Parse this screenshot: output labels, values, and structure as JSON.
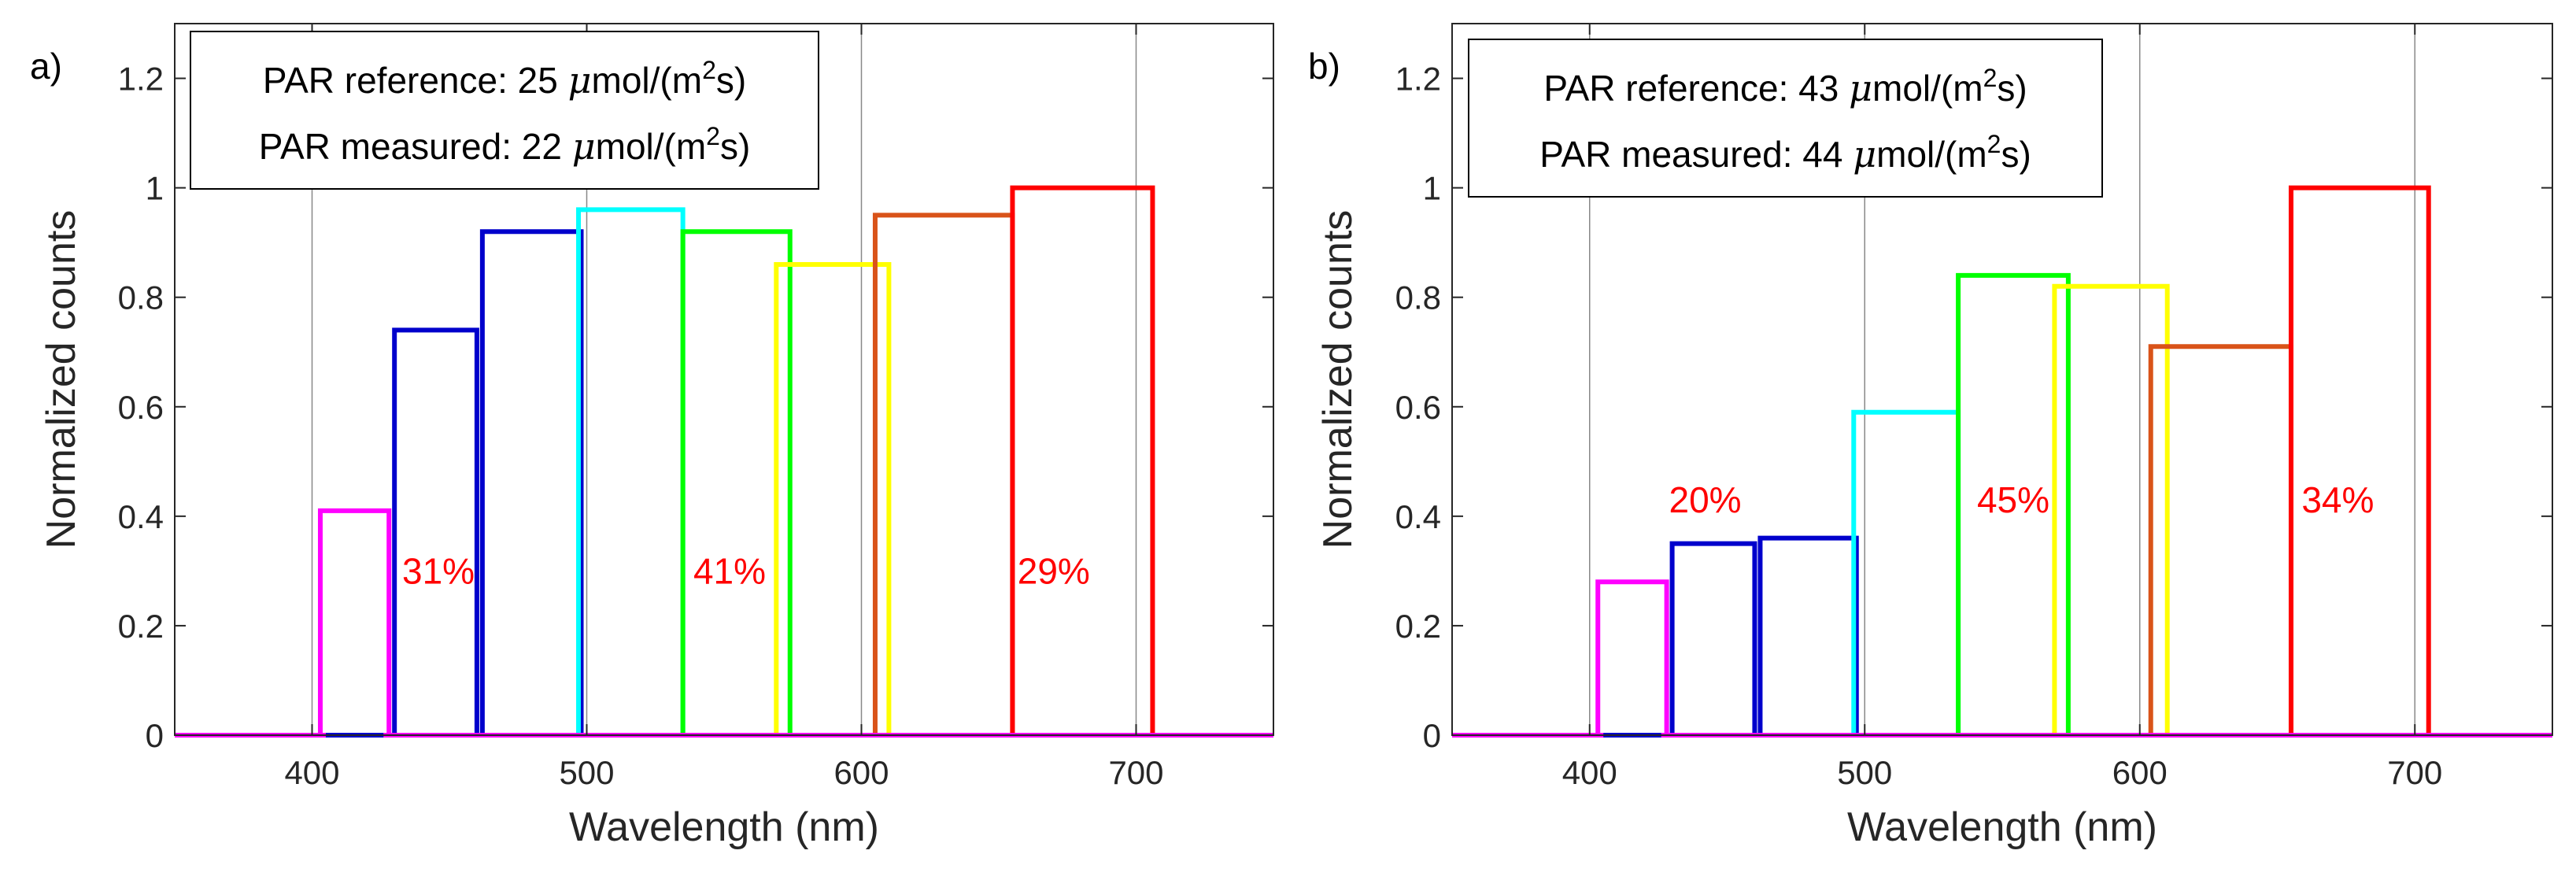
{
  "chart_data": [
    {
      "type": "bar",
      "panel_label": "a)",
      "xlabel": "Wavelength (nm)",
      "ylabel": "Normalized counts",
      "xlim": [
        350,
        750
      ],
      "ylim": [
        0,
        1.3
      ],
      "xticks": [
        400,
        500,
        600,
        700
      ],
      "yticks": [
        0,
        0.2,
        0.4,
        0.6,
        0.8,
        1,
        1.2
      ],
      "xtick_labels": [
        "400",
        "500",
        "600",
        "700"
      ],
      "ytick_labels": [
        "0",
        "0.2",
        "0.4",
        "0.6",
        "0.8",
        "1",
        "1.2"
      ],
      "grid": "vertical",
      "legend": {
        "location": "top-left",
        "ref_prefix": "PAR reference: 25 ",
        "meas_prefix": "PAR measured: 22 ",
        "unit_mu": "μ",
        "unit_text": "mol/(m",
        "unit_sup": "2",
        "unit_end": "s)"
      },
      "bands": [
        {
          "x0": 403,
          "x1": 428,
          "value": 0.41,
          "color": "#ff00ff"
        },
        {
          "x0": 430,
          "x1": 460,
          "value": 0.74,
          "color": "#0000cc"
        },
        {
          "x0": 462,
          "x1": 498,
          "value": 0.92,
          "color": "#0000cc"
        },
        {
          "x0": 497,
          "x1": 535,
          "value": 0.96,
          "color": "#00ffff"
        },
        {
          "x0": 535,
          "x1": 574,
          "value": 0.92,
          "color": "#00ff00"
        },
        {
          "x0": 569,
          "x1": 610,
          "value": 0.86,
          "color": "#ffff00"
        },
        {
          "x0": 605,
          "x1": 655,
          "value": 0.95,
          "color": "#d95319"
        },
        {
          "x0": 655,
          "x1": 706,
          "value": 1.0,
          "color": "#ff0000"
        }
      ],
      "annotations": [
        {
          "text": "31%",
          "x": 446,
          "y": 0.3
        },
        {
          "text": "41%",
          "x": 552,
          "y": 0.3
        },
        {
          "text": "29%",
          "x": 670,
          "y": 0.3
        }
      ]
    },
    {
      "type": "bar",
      "panel_label": "b)",
      "xlabel": "Wavelength (nm)",
      "ylabel": "Normalized counts",
      "xlim": [
        350,
        750
      ],
      "ylim": [
        0,
        1.3
      ],
      "xticks": [
        400,
        500,
        600,
        700
      ],
      "yticks": [
        0,
        0.2,
        0.4,
        0.6,
        0.8,
        1,
        1.2
      ],
      "xtick_labels": [
        "400",
        "500",
        "600",
        "700"
      ],
      "ytick_labels": [
        "0",
        "0.2",
        "0.4",
        "0.6",
        "0.8",
        "1",
        "1.2"
      ],
      "grid": "vertical",
      "legend": {
        "location": "top-left",
        "ref_prefix": "PAR reference: 43 ",
        "meas_prefix": "PAR measured: 44 ",
        "unit_mu": "μ",
        "unit_text": "mol/(m",
        "unit_sup": "2",
        "unit_end": "s)"
      },
      "bands": [
        {
          "x0": 403,
          "x1": 428,
          "value": 0.28,
          "color": "#ff00ff"
        },
        {
          "x0": 430,
          "x1": 460,
          "value": 0.35,
          "color": "#0000cc"
        },
        {
          "x0": 462,
          "x1": 497,
          "value": 0.36,
          "color": "#0000cc"
        },
        {
          "x0": 496,
          "x1": 534,
          "value": 0.59,
          "color": "#00ffff"
        },
        {
          "x0": 534,
          "x1": 574,
          "value": 0.84,
          "color": "#00ff00"
        },
        {
          "x0": 569,
          "x1": 610,
          "value": 0.82,
          "color": "#ffff00"
        },
        {
          "x0": 604,
          "x1": 655,
          "value": 0.71,
          "color": "#d95319"
        },
        {
          "x0": 655,
          "x1": 705,
          "value": 1.0,
          "color": "#ff0000"
        }
      ],
      "annotations": [
        {
          "text": "20%",
          "x": 442,
          "y": 0.43
        },
        {
          "text": "45%",
          "x": 554,
          "y": 0.43
        },
        {
          "text": "34%",
          "x": 672,
          "y": 0.43
        }
      ]
    }
  ],
  "colors": {
    "baseline": "#ff00ff",
    "axis": "#262626",
    "grid": "#262626",
    "annotation": "#ff0000"
  }
}
